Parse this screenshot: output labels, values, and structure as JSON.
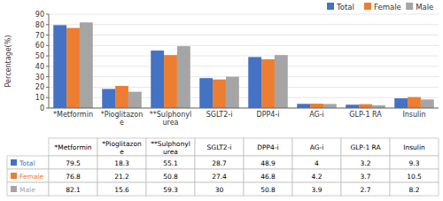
{
  "chart_data": {
    "type": "bar",
    "ylabel": "Percentage(%)",
    "categories": [
      "*Metformin",
      "*Pioglitazon\ne",
      "**Sulphonyl\nurea",
      "SGLT2-i",
      "DPP4-i",
      "AG-i",
      "GLP-1 RA",
      "Insulin"
    ],
    "series": [
      {
        "name": "Total",
        "color": "#4472C4",
        "values": [
          79.5,
          18.3,
          55.1,
          28.7,
          48.9,
          4.0,
          3.2,
          9.3
        ]
      },
      {
        "name": "Female",
        "color": "#ED7D31",
        "values": [
          76.8,
          21.2,
          50.8,
          27.4,
          46.8,
          4.2,
          3.7,
          10.5
        ]
      },
      {
        "name": "Male",
        "color": "#A5A5A5",
        "values": [
          82.1,
          15.6,
          59.3,
          30.0,
          50.8,
          3.9,
          2.7,
          8.2
        ]
      }
    ],
    "ylim": [
      0,
      90
    ],
    "yticks": [
      0,
      10,
      20,
      30,
      40,
      50,
      60,
      70,
      80,
      90
    ],
    "grid": true,
    "legend": "upper right"
  }
}
